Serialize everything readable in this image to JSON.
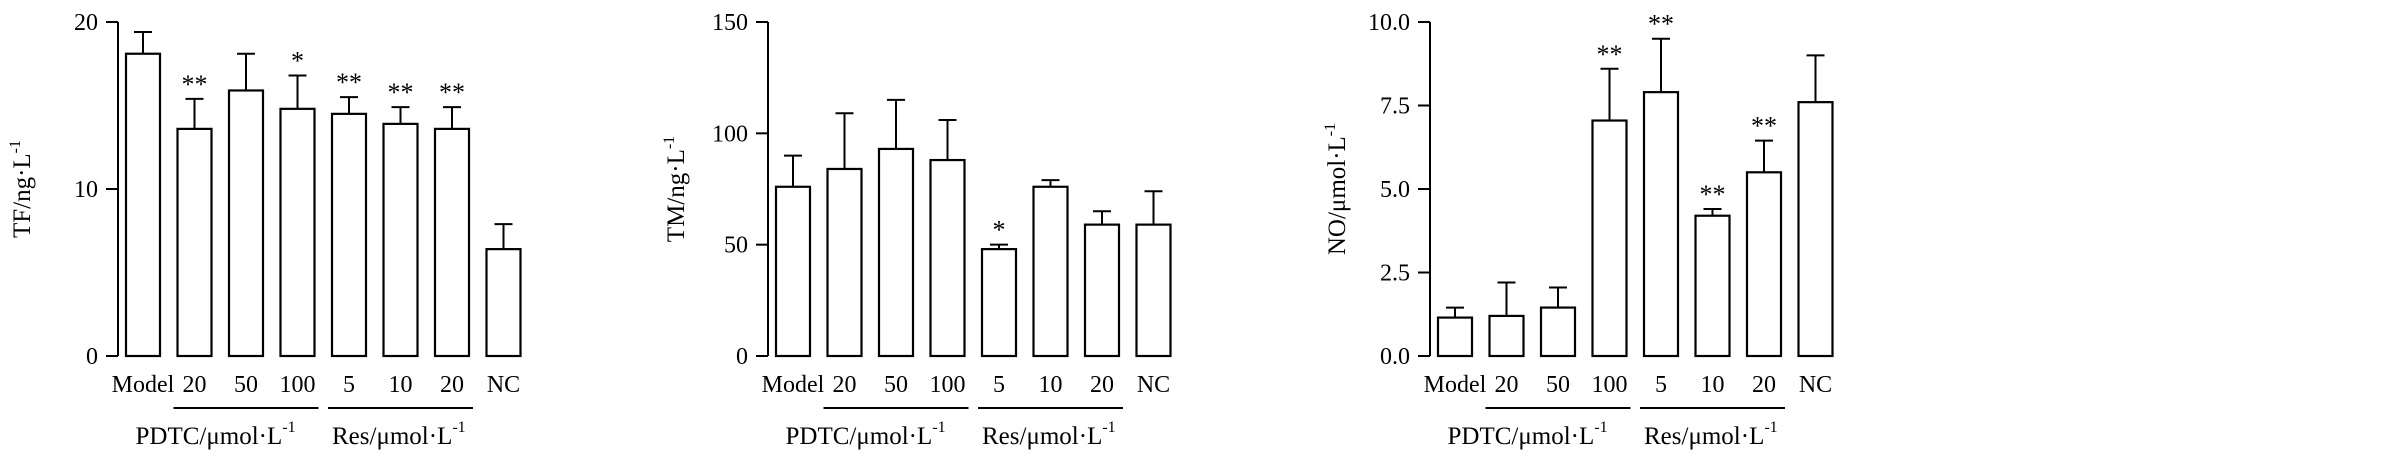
{
  "chart_data": [
    {
      "type": "bar",
      "ylabel": "TF/ng·L",
      "ylabel_sup": "-1",
      "ylim": [
        0,
        20
      ],
      "yticks": [
        "0",
        "10",
        "20"
      ],
      "ytick_values": [
        0,
        10,
        20
      ],
      "categories": [
        "Model",
        "20",
        "50",
        "100",
        "5",
        "10",
        "20",
        "NC"
      ],
      "values": [
        18.1,
        13.6,
        15.9,
        14.8,
        14.5,
        13.9,
        13.6,
        6.4
      ],
      "errors": [
        1.3,
        1.8,
        2.2,
        2.0,
        1.0,
        1.0,
        1.3,
        1.5
      ],
      "significance": [
        "",
        "**",
        "",
        "*",
        "**",
        "**",
        "**",
        ""
      ],
      "groups": [
        {
          "label": "PDTC/μmol·L",
          "sup": "-1",
          "from": 1,
          "to": 3
        },
        {
          "label": "Res/μmol·L",
          "sup": "-1",
          "from": 4,
          "to": 6
        }
      ]
    },
    {
      "type": "bar",
      "ylabel": "TM/ng·L",
      "ylabel_sup": "-1",
      "ylim": [
        0,
        150
      ],
      "yticks": [
        "0",
        "50",
        "100",
        "150"
      ],
      "ytick_values": [
        0,
        50,
        100,
        150
      ],
      "categories": [
        "Model",
        "20",
        "50",
        "100",
        "5",
        "10",
        "20",
        "NC"
      ],
      "values": [
        76,
        84,
        93,
        88,
        48,
        76,
        59,
        59
      ],
      "errors": [
        14,
        25,
        22,
        18,
        2,
        3,
        6,
        15
      ],
      "significance": [
        "",
        "",
        "",
        "",
        "*",
        "",
        "",
        ""
      ],
      "groups": [
        {
          "label": "PDTC/μmol·L",
          "sup": "-1",
          "from": 1,
          "to": 3
        },
        {
          "label": "Res/μmol·L",
          "sup": "-1",
          "from": 4,
          "to": 6
        }
      ]
    },
    {
      "type": "bar",
      "ylabel": "NO/μmol·L",
      "ylabel_sup": "-1",
      "ylim": [
        0,
        10
      ],
      "yticks": [
        "0.0",
        "2.5",
        "5.0",
        "7.5",
        "10.0"
      ],
      "ytick_values": [
        0,
        2.5,
        5,
        7.5,
        10
      ],
      "categories": [
        "Model",
        "20",
        "50",
        "100",
        "5",
        "10",
        "20",
        "NC"
      ],
      "values": [
        1.15,
        1.2,
        1.45,
        7.05,
        7.9,
        4.2,
        5.5,
        7.6
      ],
      "errors": [
        0.3,
        1.0,
        0.6,
        1.55,
        1.6,
        0.2,
        0.95,
        1.4
      ],
      "significance": [
        "",
        "",
        "",
        "**",
        "**",
        "**",
        "**",
        ""
      ],
      "groups": [
        {
          "label": "PDTC/μmol·L",
          "sup": "-1",
          "from": 1,
          "to": 3
        },
        {
          "label": "Res/μmol·L",
          "sup": "-1",
          "from": 4,
          "to": 6
        }
      ]
    }
  ]
}
